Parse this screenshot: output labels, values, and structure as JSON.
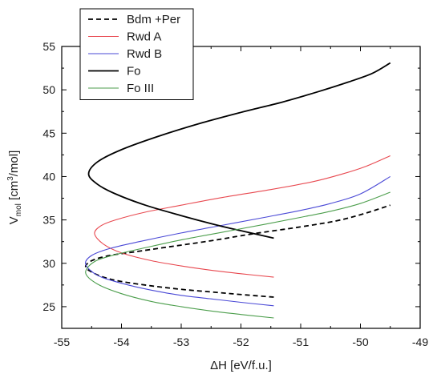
{
  "chart_data": {
    "type": "line",
    "xlabel_main": "ΔH [eV/f.u.]",
    "ylabel_main": "V",
    "ylabel_sub": "mol",
    "ylabel_unit_pre": " [cm",
    "ylabel_unit_sup": "3",
    "ylabel_unit_post": "/mol]",
    "xlim": [
      -55,
      -49
    ],
    "ylim": [
      22.5,
      55
    ],
    "xticks": [
      -55,
      -54,
      -53,
      -52,
      -51,
      -50,
      -49
    ],
    "xtick_labels": [
      "-55",
      "-54",
      "-53",
      "-52",
      "-51",
      "-50",
      "-49"
    ],
    "yticks": [
      25,
      30,
      35,
      40,
      45,
      50,
      55
    ],
    "ytick_labels": [
      "25",
      "30",
      "35",
      "40",
      "45",
      "50",
      "55"
    ],
    "legend_position": "top-left",
    "series": [
      {
        "name": "Bdm +Per",
        "color": "#000000",
        "dash": "dashed",
        "x": [
          -51.45,
          -52.0,
          -52.5,
          -53.0,
          -53.5,
          -54.0,
          -54.3,
          -54.5,
          -54.6,
          -54.5,
          -54.2,
          -53.8,
          -53.2,
          -52.5,
          -51.8,
          -51.0,
          -50.4,
          -49.95,
          -49.5
        ],
        "y": [
          26.1,
          26.4,
          26.7,
          27.0,
          27.4,
          27.9,
          28.4,
          29.0,
          29.6,
          30.3,
          30.9,
          31.3,
          31.9,
          32.6,
          33.4,
          34.2,
          34.9,
          35.7,
          36.7
        ]
      },
      {
        "name": "Rwd A",
        "color": "#e8484f",
        "dash": "solid",
        "x": [
          -51.45,
          -52.0,
          -52.5,
          -53.0,
          -53.5,
          -54.0,
          -54.3,
          -54.45,
          -54.35,
          -54.1,
          -53.6,
          -53.0,
          -52.3,
          -51.5,
          -50.8,
          -50.3,
          -49.9,
          -49.5
        ],
        "y": [
          28.4,
          28.8,
          29.2,
          29.7,
          30.3,
          31.2,
          32.2,
          33.4,
          34.3,
          35.0,
          35.9,
          36.7,
          37.6,
          38.5,
          39.4,
          40.3,
          41.2,
          42.4
        ]
      },
      {
        "name": "Rwd B",
        "color": "#4a49d6",
        "dash": "solid",
        "x": [
          -51.45,
          -52.0,
          -52.5,
          -53.0,
          -53.5,
          -54.0,
          -54.4,
          -54.6,
          -54.5,
          -54.2,
          -53.7,
          -53.0,
          -52.3,
          -51.6,
          -51.0,
          -50.5,
          -50.0,
          -49.5
        ],
        "y": [
          25.1,
          25.5,
          25.9,
          26.3,
          26.9,
          27.7,
          28.6,
          29.9,
          30.9,
          31.7,
          32.5,
          33.5,
          34.4,
          35.3,
          36.1,
          36.9,
          38.0,
          40.0
        ]
      },
      {
        "name": "Fo",
        "color": "#000000",
        "dash": "solid",
        "x": [
          -51.45,
          -51.9,
          -52.4,
          -53.0,
          -53.6,
          -54.1,
          -54.4,
          -54.55,
          -54.4,
          -54.0,
          -53.4,
          -52.7,
          -52.0,
          -51.3,
          -50.7,
          -50.2,
          -49.8,
          -49.5
        ],
        "y": [
          32.9,
          33.6,
          34.4,
          35.5,
          36.7,
          38.0,
          39.1,
          40.3,
          41.7,
          43.1,
          44.6,
          46.1,
          47.4,
          48.6,
          49.8,
          50.9,
          51.9,
          53.1
        ]
      },
      {
        "name": "Fo III",
        "color": "#4c9e4c",
        "dash": "solid",
        "x": [
          -51.45,
          -52.0,
          -52.5,
          -53.0,
          -53.5,
          -54.0,
          -54.4,
          -54.6,
          -54.45,
          -54.1,
          -53.6,
          -53.0,
          -52.3,
          -51.6,
          -51.0,
          -50.5,
          -50.0,
          -49.5
        ],
        "y": [
          23.7,
          24.1,
          24.5,
          25.0,
          25.6,
          26.5,
          27.6,
          28.9,
          30.2,
          31.0,
          31.8,
          32.7,
          33.6,
          34.5,
          35.3,
          36.0,
          36.9,
          38.2
        ]
      }
    ]
  }
}
